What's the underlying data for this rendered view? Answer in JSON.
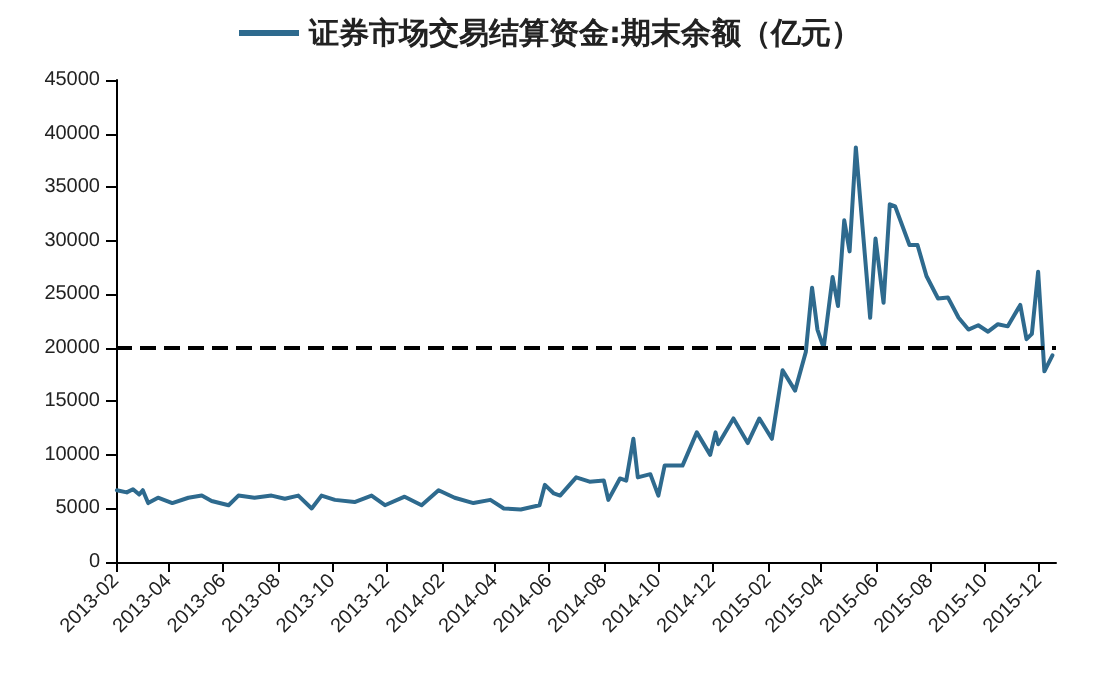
{
  "chart_data": {
    "type": "line",
    "legend": "top",
    "grid": false,
    "marker": "none",
    "line_style": "solid",
    "x": [
      "2013-02-02",
      "2013-02-13",
      "2013-02-20",
      "2013-02-27",
      "2013-03-03",
      "2013-03-09",
      "2013-03-20",
      "2013-04-05",
      "2013-04-23",
      "2013-05-08",
      "2013-05-19",
      "2013-06-07",
      "2013-06-18",
      "2013-07-06",
      "2013-07-25",
      "2013-08-09",
      "2013-08-24",
      "2013-09-08",
      "2013-09-19",
      "2013-10-04",
      "2013-10-26",
      "2013-11-14",
      "2013-11-29",
      "2013-12-21",
      "2014-01-09",
      "2014-01-28",
      "2014-02-15",
      "2014-03-08",
      "2014-03-27",
      "2014-04-11",
      "2014-04-30",
      "2014-05-21",
      "2014-05-27",
      "2014-06-06",
      "2014-06-13",
      "2014-07-01",
      "2014-07-16",
      "2014-08-01",
      "2014-08-06",
      "2014-08-19",
      "2014-08-26",
      "2014-09-03",
      "2014-09-08",
      "2014-09-22",
      "2014-10-01",
      "2014-10-08",
      "2014-10-28",
      "2014-11-13",
      "2014-11-28",
      "2014-12-04",
      "2014-12-07",
      "2014-12-24",
      "2015-01-09",
      "2015-01-22",
      "2015-02-05",
      "2015-02-17",
      "2015-03-03",
      "2015-03-15",
      "2015-03-22",
      "2015-03-28",
      "2015-04-04",
      "2015-04-14",
      "2015-04-20",
      "2015-04-27",
      "2015-05-03",
      "2015-05-10",
      "2015-05-26",
      "2015-06-01",
      "2015-06-10",
      "2015-06-17",
      "2015-06-23",
      "2015-07-09",
      "2015-07-18",
      "2015-07-28",
      "2015-08-10",
      "2015-08-21",
      "2015-09-02",
      "2015-09-13",
      "2015-09-24",
      "2015-10-05",
      "2015-10-16",
      "2015-10-27",
      "2015-11-10",
      "2015-11-17",
      "2015-11-23",
      "2015-11-30",
      "2015-12-07",
      "2015-12-16"
    ],
    "series": [
      {
        "name": "证券市场交易结算资金:期末余额（亿元）",
        "color": "#2e6a8e",
        "values": [
          6700,
          6500,
          6800,
          6300,
          6700,
          5500,
          6000,
          5500,
          6000,
          6200,
          5700,
          5300,
          6200,
          6000,
          6200,
          5900,
          6200,
          5000,
          6200,
          5800,
          5600,
          6200,
          5300,
          6100,
          5300,
          6700,
          6000,
          5500,
          5800,
          5000,
          4900,
          5300,
          7200,
          6400,
          6200,
          7900,
          7500,
          7600,
          5800,
          7800,
          7600,
          11500,
          7900,
          8200,
          6200,
          9000,
          9000,
          12100,
          10000,
          12100,
          11000,
          13400,
          11100,
          13400,
          11500,
          17900,
          16000,
          19600,
          25600,
          21700,
          20000,
          26600,
          23900,
          31900,
          29000,
          38700,
          22800,
          30200,
          24200,
          33400,
          33200,
          29600,
          29600,
          26700,
          24600,
          24700,
          22800,
          21700,
          22100,
          21500,
          22200,
          22000,
          24000,
          20800,
          21300,
          27100,
          17800,
          19300
        ]
      }
    ],
    "xlim": [
      "2013-02",
      "2015-12-20"
    ],
    "xticks": [
      "2013-02",
      "2013-04",
      "2013-06",
      "2013-08",
      "2013-10",
      "2013-12",
      "2014-02",
      "2014-04",
      "2014-06",
      "2014-08",
      "2014-10",
      "2014-12",
      "2015-02",
      "2015-04",
      "2015-06",
      "2015-08",
      "2015-10",
      "2015-12"
    ],
    "ylim": [
      0,
      45000
    ],
    "yticks": [
      0,
      5000,
      10000,
      15000,
      20000,
      25000,
      30000,
      35000,
      40000,
      45000
    ],
    "ref_lines": [
      {
        "axis": "y",
        "value": 20000,
        "color": "#000000",
        "line_style": "dashed"
      }
    ]
  }
}
